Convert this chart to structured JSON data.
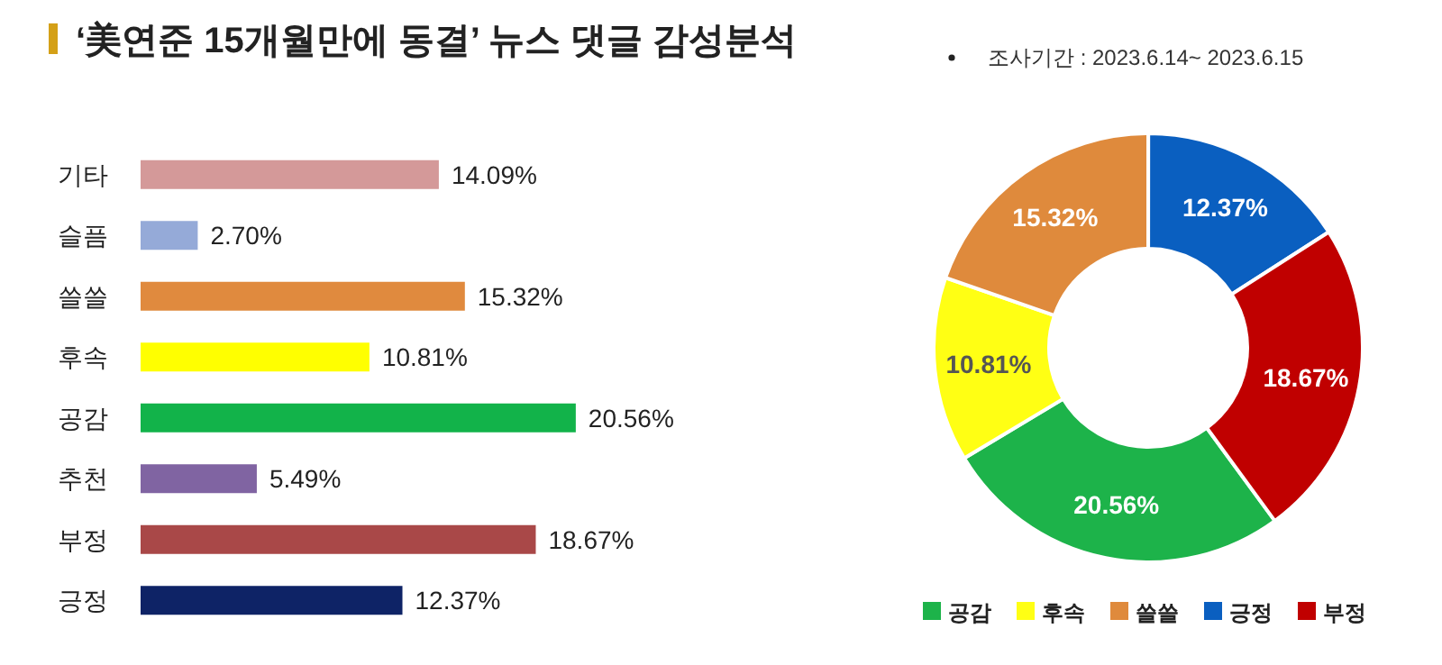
{
  "chart_data": [
    {
      "type": "bar",
      "orientation": "horizontal",
      "title": "‘美연준 15개월만에 동결’ 뉴스 댓글 감성분석",
      "annotations": [
        "조사기간 : 2023.6.14~ 2023.6.15"
      ],
      "categories": [
        "기타",
        "슬픔",
        "쓸쓸",
        "후속",
        "공감",
        "추천",
        "부정",
        "긍정"
      ],
      "values": [
        14.09,
        2.7,
        15.32,
        10.81,
        20.56,
        5.49,
        18.67,
        12.37
      ],
      "value_labels": [
        "14.09%",
        "2.70%",
        "15.32%",
        "10.81%",
        "20.56%",
        "5.49%",
        "18.67%",
        "12.37%"
      ],
      "colors": [
        "#d49999",
        "#95aad8",
        "#e08a3e",
        "#ffff00",
        "#12b34a",
        "#8064a2",
        "#a94848",
        "#0e2366"
      ]
    },
    {
      "type": "donut",
      "categories": [
        "공감",
        "후속",
        "쓸쓸",
        "긍정",
        "부정"
      ],
      "values": [
        20.56,
        10.81,
        15.32,
        12.37,
        18.67
      ],
      "value_labels": [
        "20.56%",
        "10.81%",
        "15.32%",
        "12.37%",
        "18.67%"
      ],
      "colors": [
        "#1db34a",
        "#ffff14",
        "#df8a3c",
        "#0a5fc0",
        "#c00000"
      ],
      "legend": "bottom"
    }
  ]
}
